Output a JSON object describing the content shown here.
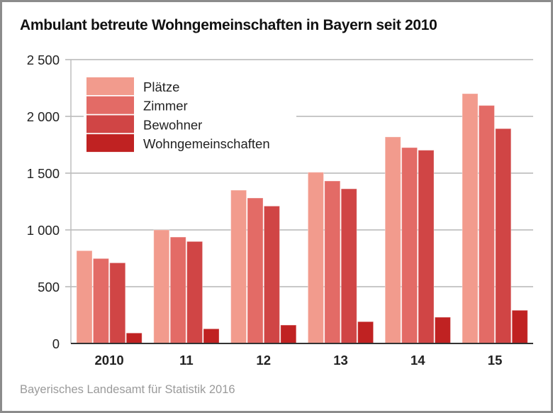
{
  "chart_data": {
    "type": "bar",
    "title": "Ambulant betreute Wohngemeinschaften in Bayern seit 2010",
    "source": "Bayerisches Landesamt für Statistik 2016",
    "xlabel": "",
    "ylabel": "",
    "categories": [
      "2010",
      "11",
      "12",
      "13",
      "14",
      "15"
    ],
    "ylim": [
      0,
      2500
    ],
    "yticks": [
      0,
      500,
      1000,
      1500,
      2000,
      2500
    ],
    "ytick_labels": [
      "0",
      "500",
      "1 000",
      "1 500",
      "2 000",
      "2 500"
    ],
    "grid": true,
    "legend_position": "top-left",
    "series": [
      {
        "name": "Plätze",
        "color": "#f29b8d",
        "values": [
          817,
          1000,
          1350,
          1508,
          1819,
          2200
        ]
      },
      {
        "name": "Zimmer",
        "color": "#e36b66",
        "values": [
          748,
          937,
          1281,
          1431,
          1725,
          2096
        ]
      },
      {
        "name": "Bewohner",
        "color": "#d04545",
        "values": [
          710,
          898,
          1210,
          1362,
          1702,
          1892
        ]
      },
      {
        "name": "Wohngemeinschaften",
        "color": "#c02222",
        "values": [
          92,
          129,
          162,
          192,
          231,
          292
        ]
      }
    ]
  }
}
